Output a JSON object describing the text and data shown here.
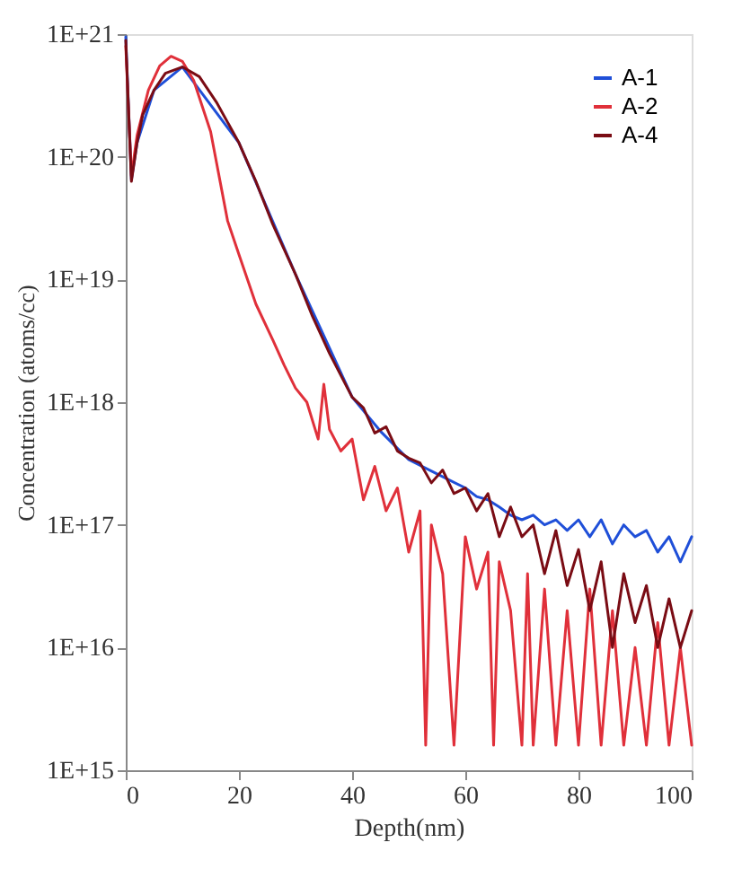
{
  "chart_data": {
    "type": "line",
    "xlabel": "Depth(nm)",
    "ylabel": "Concentration (atoms/cc)",
    "log": "y",
    "grid": false,
    "legend": "top right",
    "xlim": [
      0,
      100
    ],
    "xticks": [
      0,
      20,
      40,
      60,
      80,
      100
    ],
    "ylim": [
      1000000000000000.0,
      1e+21
    ],
    "yticks": [
      {
        "value": 1000000000000000.0,
        "label": "1E+15"
      },
      {
        "value": 1e+16,
        "label": "1E+16"
      },
      {
        "value": 1e+17,
        "label": "1E+17"
      },
      {
        "value": 1e+18,
        "label": "1E+18"
      },
      {
        "value": 1e+19,
        "label": "1E+19"
      },
      {
        "value": 1e+20,
        "label": "1E+20"
      },
      {
        "value": 1e+21,
        "label": "1E+21"
      }
    ],
    "series": [
      {
        "name": "A-1",
        "color": "#1f4fd8",
        "x": [
          0,
          1,
          2,
          5,
          10,
          20,
          30,
          40,
          45,
          50,
          55,
          60,
          62,
          64,
          66,
          68,
          70,
          72,
          74,
          76,
          78,
          80,
          82,
          84,
          86,
          88,
          90,
          92,
          94,
          96,
          98,
          100
        ],
        "values": [
          9.5e+20,
          6.5e+19,
          1.3e+20,
          3.5e+20,
          5.4e+20,
          1.3e+20,
          1.1e+19,
          1.1e+18,
          5.8e+17,
          3.4e+17,
          2.6e+17,
          2e+17,
          1.7e+17,
          1.6e+17,
          1.4e+17,
          1.2e+17,
          1.1e+17,
          1.2e+17,
          1e+17,
          1.1e+17,
          9e+16,
          1.1e+17,
          8e+16,
          1.1e+17,
          7e+16,
          1e+17,
          8e+16,
          9e+16,
          6e+16,
          8e+16,
          5e+16,
          8e+16
        ]
      },
      {
        "name": "A-2",
        "color": "#e0303a",
        "x": [
          0,
          1,
          2,
          4,
          6,
          8,
          10,
          12,
          15,
          18,
          20,
          23,
          26,
          28,
          30,
          32,
          34,
          35,
          36,
          38,
          40,
          42,
          44,
          46,
          48,
          50,
          52,
          53,
          54,
          56,
          58,
          60,
          62,
          64,
          65,
          66,
          68,
          70,
          71,
          72,
          74,
          76,
          78,
          80,
          82,
          84,
          86,
          88,
          90,
          92,
          94,
          96,
          98,
          100
        ],
        "values": [
          8e+20,
          7e+19,
          1.5e+20,
          3.5e+20,
          5.5e+20,
          6.6e+20,
          6e+20,
          4.2e+20,
          1.6e+20,
          3e+19,
          1.6e+19,
          6.3e+18,
          3.2e+18,
          2e+18,
          1.3e+18,
          1e+18,
          5e+17,
          1.4e+18,
          6e+17,
          4e+17,
          5e+17,
          1.6e+17,
          3e+17,
          1.3e+17,
          2e+17,
          6e+16,
          1.3e+17,
          1600000000000000.0,
          1e+17,
          4e+16,
          1600000000000000.0,
          8e+16,
          3e+16,
          6e+16,
          1600000000000000.0,
          5e+16,
          2e+16,
          1600000000000000.0,
          4e+16,
          1600000000000000.0,
          3e+16,
          1600000000000000.0,
          2e+16,
          1600000000000000.0,
          3e+16,
          1600000000000000.0,
          2e+16,
          1600000000000000.0,
          1e+16,
          1600000000000000.0,
          1.6e+16,
          1600000000000000.0,
          1e+16,
          1600000000000000.0
        ]
      },
      {
        "name": "A-4",
        "color": "#7a0c14",
        "x": [
          0,
          1,
          2,
          3,
          5,
          7,
          10,
          13,
          16,
          20,
          23,
          26,
          30,
          33,
          36,
          40,
          42,
          44,
          46,
          48,
          50,
          52,
          54,
          56,
          58,
          60,
          62,
          64,
          66,
          68,
          70,
          72,
          74,
          76,
          78,
          80,
          82,
          84,
          86,
          88,
          90,
          92,
          94,
          96,
          98,
          100
        ],
        "values": [
          8.9e+20,
          6.3e+19,
          1.3e+20,
          2.2e+20,
          3.5e+20,
          4.8e+20,
          5.4e+20,
          4.5e+20,
          2.8e+20,
          1.3e+20,
          6.3e+19,
          2.8e+19,
          1.1e+19,
          5e+18,
          2.5e+18,
          1.1e+18,
          9e+17,
          5.6e+17,
          6.3e+17,
          4e+17,
          3.5e+17,
          3.2e+17,
          2.2e+17,
          2.8e+17,
          1.8e+17,
          2e+17,
          1.3e+17,
          1.8e+17,
          8e+16,
          1.4e+17,
          8e+16,
          1e+17,
          4e+16,
          9e+16,
          3.2e+16,
          6.3e+16,
          2e+16,
          5e+16,
          1e+16,
          4e+16,
          1.6e+16,
          3.2e+16,
          1e+16,
          2.5e+16,
          1e+16,
          2e+16
        ]
      }
    ]
  }
}
